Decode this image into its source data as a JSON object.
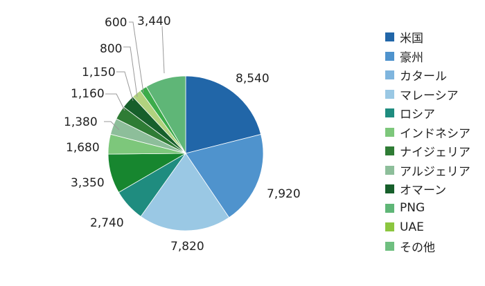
{
  "chart_data": {
    "type": "pie",
    "start_angle_deg": 0,
    "direction": "clockwise",
    "legend_position": "right",
    "slices": [
      {
        "name": "米国",
        "value": 8540,
        "label": "8,540",
        "color": "#2166a8"
      },
      {
        "name": "豪州",
        "value": 7920,
        "label": "7,920",
        "color": "#4f93cd"
      },
      {
        "name": "カタール",
        "value": 7820,
        "label": "7,820",
        "color": "#9ac8e4"
      },
      {
        "name": "マレーシア",
        "value": 2740,
        "label": "2,740",
        "color": "#1f8c7f"
      },
      {
        "name": "ロシア",
        "value": 3350,
        "label": "3,350",
        "color": "#17862f"
      },
      {
        "name": "インドネシア",
        "value": 1680,
        "label": "1,680",
        "color": "#7dc77b"
      },
      {
        "name": "ナイジェリア",
        "value": 1380,
        "label": "1,380",
        "color": "#8dbe9a"
      },
      {
        "name": "アルジェリア",
        "value": 1160,
        "label": "1,160",
        "color": "#2f7c35"
      },
      {
        "name": "オマーン",
        "value": 1150,
        "label": "1,150",
        "color": "#175f2b"
      },
      {
        "name": "PNG",
        "value": 800,
        "label": "800",
        "color": "#b2d27f"
      },
      {
        "name": "UAE",
        "value": 600,
        "label": "600",
        "color": "#3cac4a"
      },
      {
        "name": "その他",
        "value": 3440,
        "label": "3,440",
        "color": "#5fb677"
      }
    ],
    "legend": [
      {
        "name": "米国",
        "color": "#2166a8"
      },
      {
        "name": "豪州",
        "color": "#4f93cd"
      },
      {
        "name": "カタール",
        "color": "#7fb5de"
      },
      {
        "name": "マレーシア",
        "color": "#9ac8e4"
      },
      {
        "name": "ロシア",
        "color": "#1f8c7f"
      },
      {
        "name": "インドネシア",
        "color": "#7dc77b"
      },
      {
        "name": "ナイジェリア",
        "color": "#2f7c35"
      },
      {
        "name": "アルジェリア",
        "color": "#8dbe9a"
      },
      {
        "name": "オマーン",
        "color": "#175f2b"
      },
      {
        "name": "PNG",
        "color": "#5fb677"
      },
      {
        "name": "UAE",
        "color": "#8cc63f"
      },
      {
        "name": "その他",
        "color": "#6fbf80"
      }
    ]
  }
}
